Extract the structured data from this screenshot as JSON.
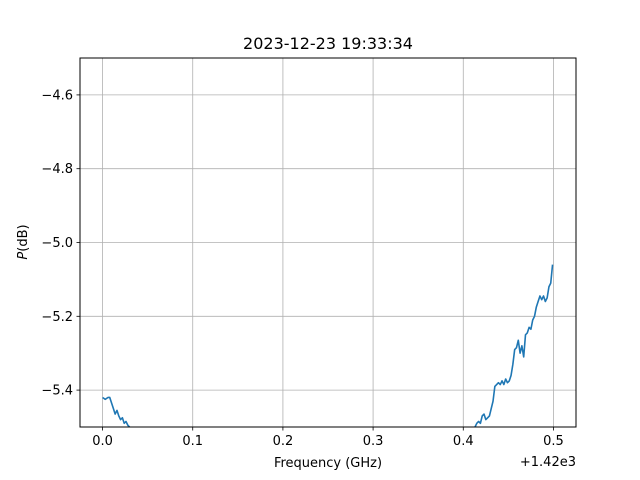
{
  "chart_data": {
    "type": "line",
    "title": "2023-12-23 19:33:34",
    "xlabel": "Frequency (GHz)",
    "ylabel_italic": "P",
    "ylabel_rest": "(dB)",
    "x_offset_label": "+1.42e3",
    "xlim": [
      -0.025,
      0.525
    ],
    "ylim": [
      -5.5,
      -4.5
    ],
    "x_ticks": [
      {
        "value": 0.0,
        "label": "0.0"
      },
      {
        "value": 0.1,
        "label": "0.1"
      },
      {
        "value": 0.2,
        "label": "0.2"
      },
      {
        "value": 0.3,
        "label": "0.3"
      },
      {
        "value": 0.4,
        "label": "0.4"
      },
      {
        "value": 0.5,
        "label": "0.5"
      }
    ],
    "y_ticks": [
      {
        "value": -5.4,
        "label": "−5.4"
      },
      {
        "value": -5.2,
        "label": "−5.2"
      },
      {
        "value": -5.0,
        "label": "−5.0"
      },
      {
        "value": -4.8,
        "label": "−4.8"
      },
      {
        "value": -4.6,
        "label": "−4.6"
      }
    ],
    "grid": true,
    "line_color": "#1f77b4",
    "series": [
      {
        "segments": [
          [
            [
              0.0,
              -5.42
            ],
            [
              0.003,
              -5.425
            ],
            [
              0.006,
              -5.42
            ],
            [
              0.008,
              -5.42
            ],
            [
              0.01,
              -5.435
            ],
            [
              0.012,
              -5.45
            ],
            [
              0.014,
              -5.465
            ],
            [
              0.016,
              -5.455
            ],
            [
              0.018,
              -5.47
            ],
            [
              0.02,
              -5.48
            ],
            [
              0.022,
              -5.475
            ],
            [
              0.024,
              -5.49
            ],
            [
              0.026,
              -5.485
            ],
            [
              0.028,
              -5.495
            ],
            [
              0.03,
              -5.5
            ]
          ],
          [
            [
              0.413,
              -5.5
            ],
            [
              0.415,
              -5.49
            ],
            [
              0.417,
              -5.485
            ],
            [
              0.419,
              -5.49
            ],
            [
              0.421,
              -5.47
            ],
            [
              0.423,
              -5.465
            ],
            [
              0.425,
              -5.48
            ],
            [
              0.427,
              -5.475
            ],
            [
              0.429,
              -5.47
            ],
            [
              0.431,
              -5.45
            ],
            [
              0.433,
              -5.43
            ],
            [
              0.435,
              -5.39
            ],
            [
              0.437,
              -5.385
            ],
            [
              0.439,
              -5.38
            ],
            [
              0.441,
              -5.385
            ],
            [
              0.443,
              -5.375
            ],
            [
              0.445,
              -5.385
            ],
            [
              0.447,
              -5.37
            ],
            [
              0.449,
              -5.38
            ],
            [
              0.451,
              -5.375
            ],
            [
              0.453,
              -5.36
            ],
            [
              0.455,
              -5.33
            ],
            [
              0.457,
              -5.29
            ],
            [
              0.459,
              -5.285
            ],
            [
              0.461,
              -5.265
            ],
            [
              0.463,
              -5.3
            ],
            [
              0.465,
              -5.28
            ],
            [
              0.467,
              -5.31
            ],
            [
              0.469,
              -5.25
            ],
            [
              0.471,
              -5.245
            ],
            [
              0.473,
              -5.23
            ],
            [
              0.475,
              -5.235
            ],
            [
              0.477,
              -5.21
            ],
            [
              0.479,
              -5.2
            ],
            [
              0.481,
              -5.175
            ],
            [
              0.483,
              -5.16
            ],
            [
              0.485,
              -5.145
            ],
            [
              0.487,
              -5.155
            ],
            [
              0.489,
              -5.145
            ],
            [
              0.491,
              -5.16
            ],
            [
              0.493,
              -5.15
            ],
            [
              0.495,
              -5.12
            ],
            [
              0.497,
              -5.11
            ],
            [
              0.499,
              -5.06
            ]
          ]
        ]
      }
    ]
  }
}
